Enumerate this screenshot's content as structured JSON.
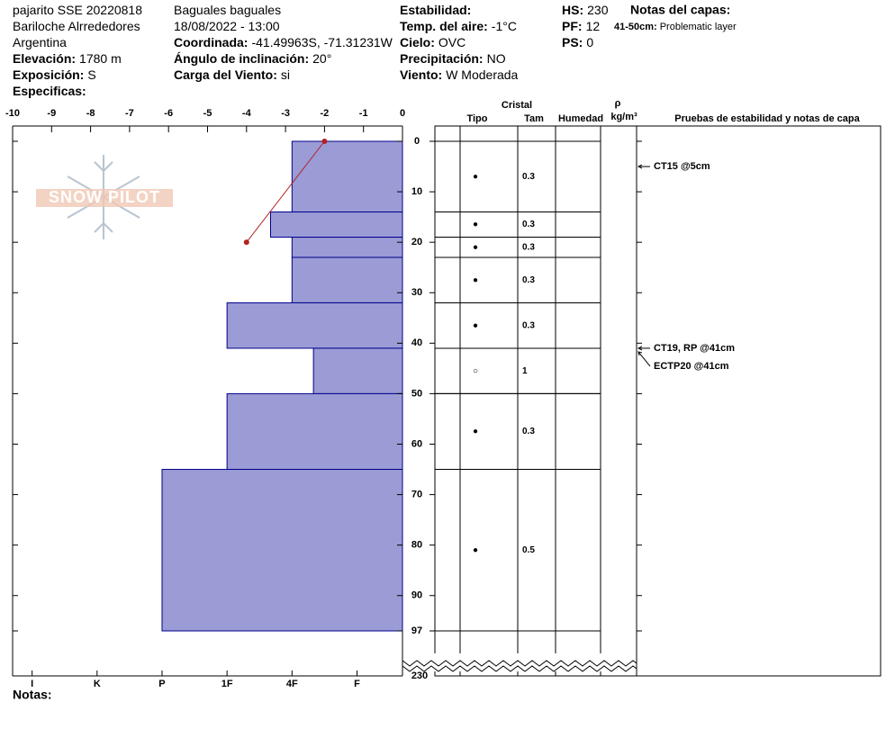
{
  "header": {
    "columns": [
      [
        {
          "value": "pajarito SSE 20220818"
        },
        {
          "value": "Bariloche Alrrededores"
        },
        {
          "value": "Argentina"
        },
        {
          "label": "Elevación:",
          "value": "1780 m"
        },
        {
          "label": "Exposición:",
          "value": "S"
        },
        {
          "label": "Especificas:"
        }
      ],
      [
        {
          "value": "Baguales baguales"
        },
        {
          "value": "18/08/2022 - 13:00"
        },
        {
          "label": "Coordinada:",
          "value": "-41.49963S, -71.31231W"
        },
        {
          "label": "Ángulo de inclinación:",
          "value": "20°"
        },
        {
          "label": "Carga del Viento:",
          "value": "si"
        }
      ],
      [
        {
          "label": "Estabilidad:"
        },
        {
          "label": "Temp. del aire:",
          "value": "-1°C"
        },
        {
          "label": "Cielo:",
          "value": "OVC"
        },
        {
          "label": "Precipitación:",
          "value": "NO"
        },
        {
          "label": "Viento:",
          "value": "W Moderada"
        }
      ],
      [
        {
          "label": "HS:",
          "value": 230
        },
        {
          "label": "PF:",
          "value": 12
        },
        {
          "label": "PS:",
          "value": 0
        }
      ]
    ],
    "layer_notes_title": "Notas del capas:",
    "layer_notes": [
      {
        "range": "41-50cm:",
        "text": "Problematic layer"
      }
    ]
  },
  "chart_data": {
    "type": "snow-profile",
    "logo": "SNOW PILOT",
    "temperature": {
      "xlim": [
        -10,
        0
      ],
      "xticks": [
        -10,
        -9,
        -8,
        -7,
        -6,
        -5,
        -4,
        -3,
        -2,
        -1,
        0
      ],
      "depths": [
        0,
        20
      ],
      "values": [
        -2,
        -4
      ],
      "color": "#b22222"
    },
    "depth": {
      "ylim": [
        0,
        97
      ],
      "yticks": [
        0,
        10,
        20,
        30,
        40,
        50,
        60,
        70,
        80,
        90,
        97
      ]
    },
    "hardness": {
      "xlim": [
        6.3,
        0.3
      ],
      "xticks": [
        {
          "value": 6,
          "label": "I"
        },
        {
          "value": 5,
          "label": "K"
        },
        {
          "value": 4,
          "label": "P"
        },
        {
          "value": 3,
          "label": "1F"
        },
        {
          "value": 2,
          "label": "4F"
        },
        {
          "value": 1,
          "label": "F"
        }
      ]
    },
    "layers": {
      "color": "#9b9bd6",
      "top": [
        0,
        14,
        19,
        23,
        32,
        41,
        50,
        65
      ],
      "bottom": [
        14,
        19,
        23,
        32,
        41,
        50,
        65,
        97
      ],
      "hardness": [
        2,
        2.33,
        2,
        2,
        3,
        1.67,
        3,
        4
      ],
      "grain": [
        "●",
        "●",
        "●",
        "●",
        "●",
        "○",
        "●",
        "●"
      ],
      "size": [
        0.3,
        0.3,
        0.3,
        0.3,
        0.3,
        1,
        0.3,
        0.5
      ]
    },
    "table_headers": {
      "crystal": "Cristal",
      "type": "Tipo",
      "size": "Tam",
      "moisture": "Humedad",
      "density": "ρ",
      "density_unit": "kg/m³",
      "tests": "Pruebas de estabilidad y notas de capa"
    },
    "tests": [
      {
        "label": "CT15 @5cm",
        "depth": 5
      },
      {
        "label": "CT19, RP @41cm",
        "depth": 41
      },
      {
        "label": "ECTP20 @41cm",
        "depth": 41
      }
    ],
    "notes_label": "Notas:"
  }
}
